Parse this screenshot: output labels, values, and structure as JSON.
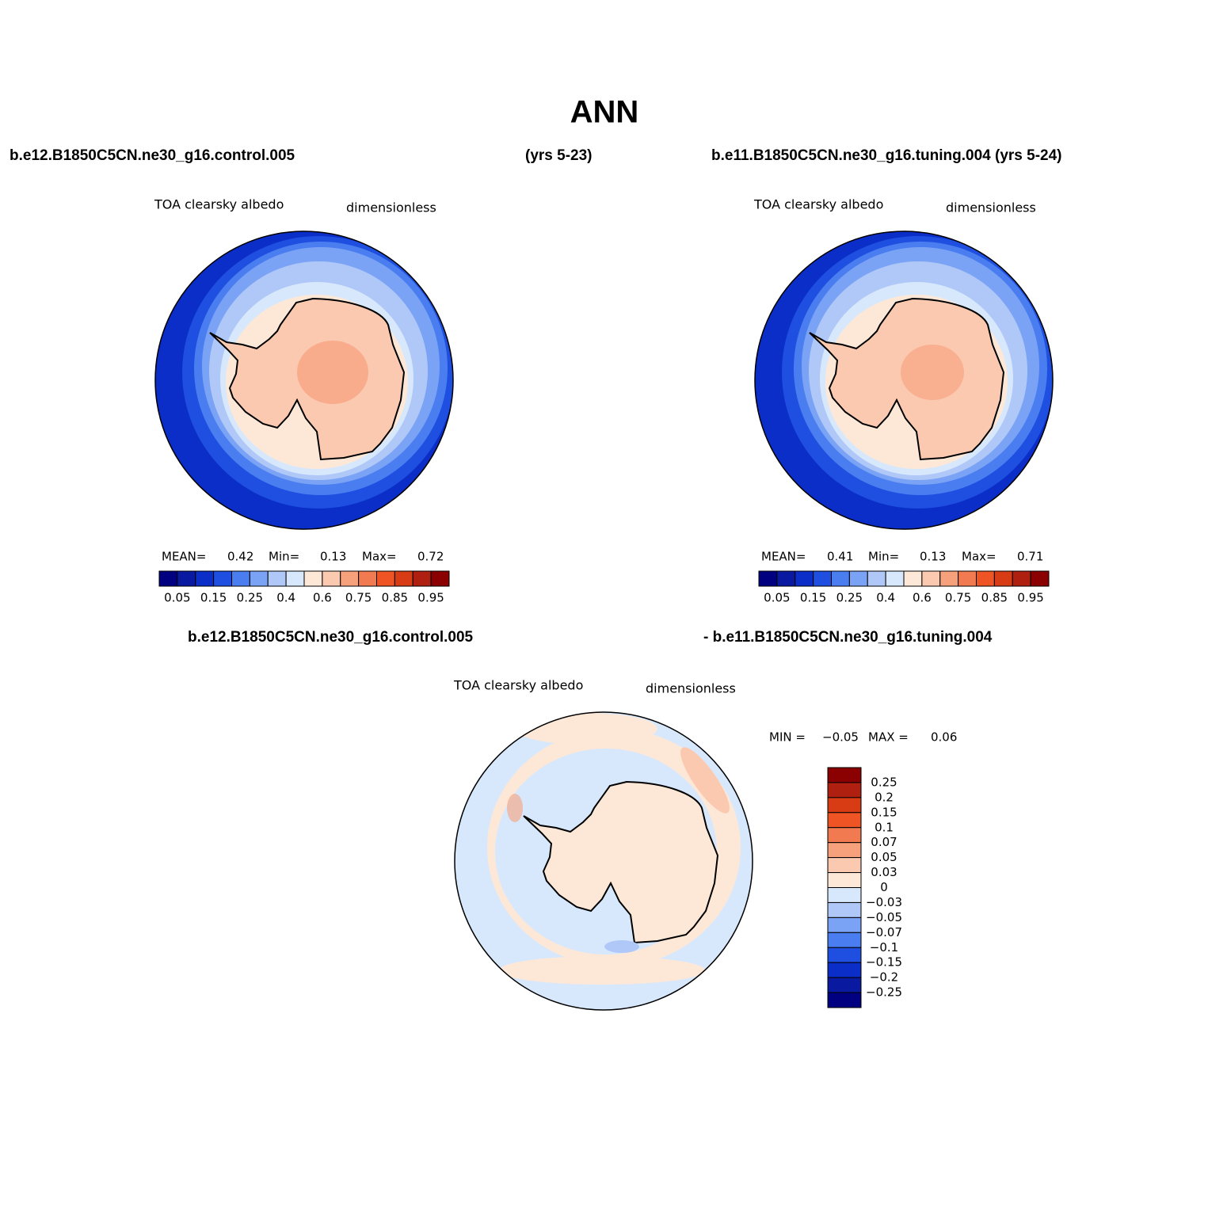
{
  "title": "ANN",
  "headers": {
    "left_case": "b.e12.B1850C5CN.ne30_g16.control.005",
    "left_years": "(yrs 5-23)",
    "right_case": "b.e11.B1850C5CN.ne30_g16.tuning.004 (yrs 5-24)",
    "diff_left": "b.e12.B1850C5CN.ne30_g16.control.005",
    "diff_right": "- b.e11.B1850C5CN.ne30_g16.tuning.004"
  },
  "panels": [
    {
      "variable": "TOA clearsky albedo",
      "units": "dimensionless",
      "stats": [
        "MEAN=",
        "0.42",
        "Min=",
        "0.13",
        "Max=",
        "0.72"
      ]
    },
    {
      "variable": "TOA clearsky albedo",
      "units": "dimensionless",
      "stats": [
        "MEAN=",
        "0.41",
        "Min=",
        "0.13",
        "Max=",
        "0.71"
      ]
    },
    {
      "variable": "TOA clearsky albedo",
      "units": "dimensionless",
      "stats": [
        "MIN =",
        "−0.05",
        "MAX =",
        "0.06"
      ]
    }
  ],
  "colorbars": {
    "absolute": {
      "colors": [
        "#000080",
        "#0a1aa0",
        "#0b2ec8",
        "#1e4fe0",
        "#4a7ef0",
        "#7ba3f5",
        "#b0c8f8",
        "#d8e8fc",
        "#fde8d8",
        "#fbc9b0",
        "#f6a07c",
        "#f27a50",
        "#ee5424",
        "#d83c14",
        "#b02010",
        "#8b0000"
      ],
      "labels": [
        "0.05",
        "0.15",
        "0.25",
        "0.4",
        "0.6",
        "0.75",
        "0.85",
        "0.95"
      ]
    },
    "difference": {
      "colors": [
        "#8b0000",
        "#b02010",
        "#d83c14",
        "#ee5424",
        "#f27a50",
        "#f6a07c",
        "#fbc9b0",
        "#fde8d8",
        "#d8e8fc",
        "#b0c8f8",
        "#7ba3f5",
        "#4a7ef0",
        "#1e4fe0",
        "#0b2ec8",
        "#0a1aa0",
        "#000080"
      ],
      "labels": [
        "0.25",
        "0.2",
        "0.15",
        "0.1",
        "0.07",
        "0.05",
        "0.03",
        "0",
        "−0.03",
        "−0.05",
        "−0.07",
        "−0.1",
        "−0.15",
        "−0.2",
        "−0.25"
      ]
    }
  }
}
